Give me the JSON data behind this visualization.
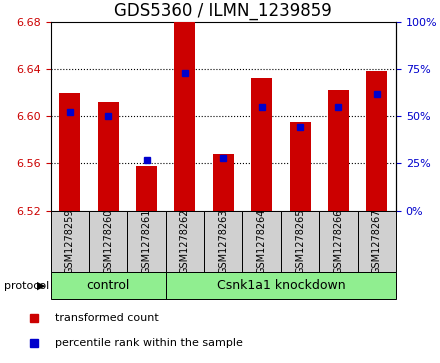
{
  "title": "GDS5360 / ILMN_1239859",
  "samples": [
    "GSM1278259",
    "GSM1278260",
    "GSM1278261",
    "GSM1278262",
    "GSM1278263",
    "GSM1278264",
    "GSM1278265",
    "GSM1278266",
    "GSM1278267"
  ],
  "red_values": [
    6.62,
    6.612,
    6.558,
    6.68,
    6.568,
    6.632,
    6.595,
    6.622,
    6.638
  ],
  "blue_pct": [
    52,
    50,
    27,
    73,
    28,
    55,
    44,
    55,
    62
  ],
  "bar_bottom": 6.52,
  "ylim": [
    6.52,
    6.68
  ],
  "y2lim": [
    0,
    100
  ],
  "y_ticks": [
    6.52,
    6.56,
    6.6,
    6.64,
    6.68
  ],
  "y2_ticks": [
    0,
    25,
    50,
    75,
    100
  ],
  "red_color": "#cc0000",
  "blue_color": "#0000cc",
  "bar_width": 0.55,
  "control_label": "control",
  "knockdown_label": "Csnk1a1 knockdown",
  "protocol_label": "protocol",
  "legend_red": "transformed count",
  "legend_blue": "percentile rank within the sample",
  "control_count": 3,
  "sample_box_color": "#d0d0d0",
  "protocol_bg": "#90ee90",
  "title_fontsize": 12,
  "tick_fontsize": 8,
  "sample_fontsize": 7,
  "label_fontsize": 9,
  "grid_ticks": [
    6.56,
    6.6,
    6.64
  ]
}
